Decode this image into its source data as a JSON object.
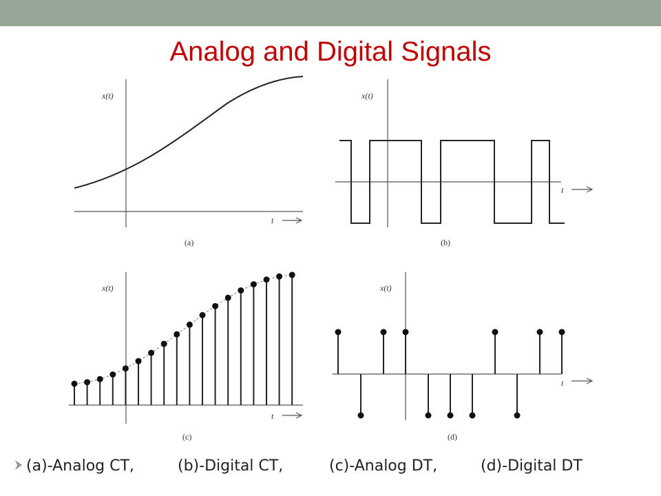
{
  "title": "Analog and Digital Signals",
  "panels": [
    {
      "y_label": "x(t)",
      "x_label": "t",
      "caption": "(a)"
    },
    {
      "y_label": "x(t)",
      "x_label": "t",
      "caption": "(b)"
    },
    {
      "y_label": "x(t)",
      "x_label": "t",
      "caption": "(c)"
    },
    {
      "y_label": "x(t)",
      "x_label": "t",
      "caption": "(d)"
    }
  ],
  "bullets": [
    "(a)-Analog CT,",
    "(b)-Digital CT,",
    "(c)-Analog DT,",
    "(d)-Digital DT"
  ]
}
